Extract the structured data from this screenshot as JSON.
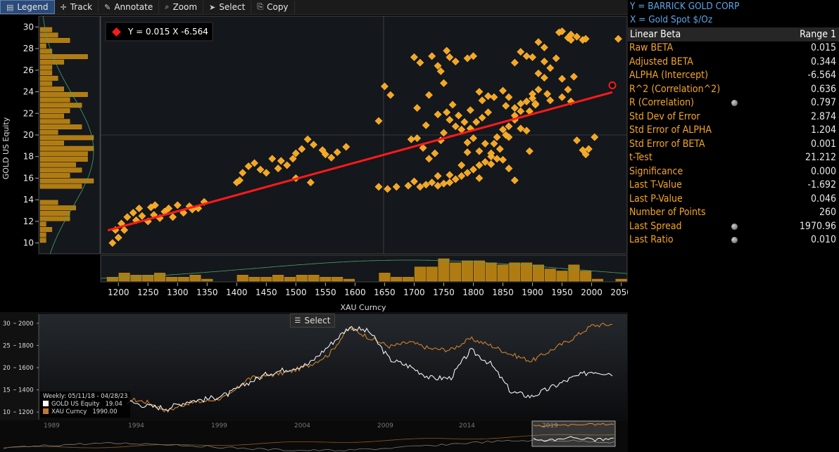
{
  "toolbar": {
    "legend": "Legend",
    "track": "Track",
    "annotate": "Annotate",
    "zoom": "Zoom",
    "select": "Select",
    "copy": "Copy"
  },
  "chart": {
    "regression_label": "Y = 0.015 X  -6.564",
    "y_axis_label": "GOLD US Equity",
    "x_axis_label": "XAU Curncy"
  },
  "colors": {
    "accent": "#f5a623",
    "regression": "#ff1a1a",
    "label_blue": "#5aa6e8"
  },
  "right_panel": {
    "y_def": "Y = BARRICK GOLD CORP",
    "x_def": "X = Gold Spot  $/Oz",
    "header_left": "Linear Beta",
    "header_right": "Range 1",
    "stats": [
      {
        "label": "Raw BETA",
        "value": "0.015"
      },
      {
        "label": "Adjusted BETA",
        "value": "0.344"
      },
      {
        "label": "ALPHA (Intercept)",
        "value": "-6.564"
      },
      {
        "label": "R^2 (Correlation^2)",
        "value": "0.636"
      },
      {
        "label": "R (Correlation)",
        "value": "0.797"
      },
      {
        "label": "Std Dev of Error",
        "value": "2.874"
      },
      {
        "label": "Std Error of ALPHA",
        "value": "1.204"
      },
      {
        "label": "Std Error of BETA",
        "value": "0.001"
      },
      {
        "label": "t-Test",
        "value": "21.212"
      },
      {
        "label": "Significance",
        "value": "0.000"
      },
      {
        "label": "Last T-Value",
        "value": "-1.692"
      },
      {
        "label": "Last P-Value",
        "value": "0.046"
      },
      {
        "label": "Number of Points",
        "value": "260"
      },
      {
        "label": "Last Spread",
        "value": "1970.96"
      },
      {
        "label": "Last Ratio",
        "value": "0.010"
      }
    ]
  },
  "lower": {
    "select_label": "Select",
    "legend_period": "Weekly: 05/11/18 - 04/28/23",
    "legend_gold_name": "GOLD US Equity",
    "legend_gold_value": "19.04",
    "legend_xau_name": "XAU Curncy",
    "legend_xau_value": "1990.00"
  },
  "chart_data": {
    "type": "scatter",
    "xlabel": "XAU Curncy",
    "ylabel": "GOLD US Equity",
    "xlim": [
      1170,
      2060
    ],
    "ylim": [
      9,
      31
    ],
    "x_ticks": [
      1200,
      1250,
      1300,
      1350,
      1400,
      1450,
      1500,
      1550,
      1600,
      1650,
      1700,
      1750,
      1800,
      1850,
      1900,
      1950,
      2000,
      2050
    ],
    "y_ticks": [
      10,
      12,
      14,
      16,
      18,
      20,
      22,
      24,
      26,
      28,
      30
    ],
    "regression": {
      "slope": 0.015,
      "intercept": -6.564
    },
    "last_point": [
      2035,
      24.6
    ],
    "points": [
      [
        1190,
        10
      ],
      [
        1200,
        10.5
      ],
      [
        1195,
        11.2
      ],
      [
        1205,
        11.8
      ],
      [
        1215,
        12.4
      ],
      [
        1210,
        11.2
      ],
      [
        1225,
        12.8
      ],
      [
        1235,
        13.2
      ],
      [
        1240,
        12.5
      ],
      [
        1250,
        12
      ],
      [
        1255,
        13.3
      ],
      [
        1262,
        13.5
      ],
      [
        1270,
        12.3
      ],
      [
        1278,
        12.9
      ],
      [
        1285,
        13.2
      ],
      [
        1292,
        12.4
      ],
      [
        1300,
        13.5
      ],
      [
        1310,
        12.8
      ],
      [
        1320,
        13.4
      ],
      [
        1335,
        13.2
      ],
      [
        1345,
        13.8
      ],
      [
        1325,
        13.1
      ],
      [
        1260,
        12.6
      ],
      [
        1230,
        12.1
      ],
      [
        1400,
        15.6
      ],
      [
        1405,
        15.8
      ],
      [
        1410,
        16.5
      ],
      [
        1420,
        17.1
      ],
      [
        1430,
        17.4
      ],
      [
        1440,
        16.8
      ],
      [
        1450,
        16.5
      ],
      [
        1460,
        17.8
      ],
      [
        1470,
        16.9
      ],
      [
        1485,
        17.2
      ],
      [
        1495,
        17.8
      ],
      [
        1500,
        18.3
      ],
      [
        1510,
        18.7
      ],
      [
        1520,
        19.6
      ],
      [
        1530,
        19.1
      ],
      [
        1550,
        18.2
      ],
      [
        1560,
        17.9
      ],
      [
        1570,
        18.4
      ],
      [
        1585,
        18.9
      ],
      [
        1500,
        16
      ],
      [
        1525,
        15.6
      ],
      [
        1545,
        18.6
      ],
      [
        1475,
        17.6
      ],
      [
        1640,
        21.3
      ],
      [
        1650,
        24.5
      ],
      [
        1660,
        23.7
      ],
      [
        1640,
        15.2
      ],
      [
        1655,
        15.0
      ],
      [
        1670,
        15.2
      ],
      [
        1690,
        15.3
      ],
      [
        1700,
        15.7
      ],
      [
        1710,
        15.2
      ],
      [
        1720,
        15.4
      ],
      [
        1730,
        15.6
      ],
      [
        1740,
        15.3
      ],
      [
        1750,
        15.5
      ],
      [
        1760,
        16.3
      ],
      [
        1770,
        15.9
      ],
      [
        1780,
        16.2
      ],
      [
        1790,
        16.5
      ],
      [
        1800,
        16.8
      ],
      [
        1810,
        17.2
      ],
      [
        1820,
        17.5
      ],
      [
        1830,
        18
      ],
      [
        1835,
        19.2
      ],
      [
        1840,
        19.8
      ],
      [
        1850,
        20.5
      ],
      [
        1860,
        20.8
      ],
      [
        1870,
        21.4
      ],
      [
        1880,
        22.2
      ],
      [
        1890,
        23.1
      ],
      [
        1900,
        23.4
      ],
      [
        1905,
        22.8
      ],
      [
        1910,
        24.2
      ],
      [
        1920,
        25.3
      ],
      [
        1930,
        26.2
      ],
      [
        1940,
        27.1
      ],
      [
        1945,
        29.5
      ],
      [
        1950,
        29.6
      ],
      [
        1960,
        29
      ],
      [
        1965,
        29.3
      ],
      [
        1975,
        29.1
      ],
      [
        1985,
        28.8
      ],
      [
        1990,
        28.9
      ],
      [
        1970,
        25.4
      ],
      [
        1960,
        24.2
      ],
      [
        1950,
        23.5
      ],
      [
        1925,
        23.8
      ],
      [
        1930,
        23.2
      ],
      [
        1950,
        25.2
      ],
      [
        1965,
        23.1
      ],
      [
        1975,
        19.5
      ],
      [
        1985,
        18.6
      ],
      [
        1990,
        18.2
      ],
      [
        1995,
        18.7
      ],
      [
        2005,
        19.8
      ],
      [
        1855,
        20
      ],
      [
        1860,
        19.8
      ],
      [
        1845,
        18.7
      ],
      [
        1840,
        17.8
      ],
      [
        1830,
        18.3
      ],
      [
        1820,
        19.2
      ],
      [
        1810,
        18.5
      ],
      [
        1800,
        19.7
      ],
      [
        1790,
        19.3
      ],
      [
        1780,
        20.5
      ],
      [
        1770,
        20.8
      ],
      [
        1760,
        21.4
      ],
      [
        1750,
        20.2
      ],
      [
        1745,
        19.5
      ],
      [
        1735,
        18.3
      ],
      [
        1725,
        17.8
      ],
      [
        1715,
        18.8
      ],
      [
        1720,
        20.9
      ],
      [
        1705,
        19.7
      ],
      [
        1695,
        19.6
      ],
      [
        1740,
        21.9
      ],
      [
        1755,
        22.1
      ],
      [
        1765,
        22.8
      ],
      [
        1775,
        21.8
      ],
      [
        1785,
        21.2
      ],
      [
        1795,
        22.3
      ],
      [
        1810,
        24
      ],
      [
        1815,
        23.2
      ],
      [
        1825,
        23.6
      ],
      [
        1850,
        24.1
      ],
      [
        1860,
        23.5
      ],
      [
        1870,
        22.5
      ],
      [
        1880,
        22.9
      ],
      [
        1895,
        22.2
      ],
      [
        1900,
        23.8
      ],
      [
        1905,
        22.9
      ],
      [
        1910,
        25.7
      ],
      [
        1920,
        26.8
      ],
      [
        1730,
        27.3
      ],
      [
        1740,
        26.4
      ],
      [
        1750,
        24.8
      ],
      [
        1760,
        27.2
      ],
      [
        1770,
        26.8
      ],
      [
        1790,
        27.1
      ],
      [
        1800,
        27.3
      ],
      [
        1710,
        26.7
      ],
      [
        1725,
        23.7
      ],
      [
        1700,
        27.2
      ],
      [
        1705,
        22.5
      ],
      [
        1755,
        27.8
      ],
      [
        1745,
        25.9
      ],
      [
        1870,
        26.7
      ],
      [
        1880,
        27.7
      ],
      [
        1890,
        27.3
      ],
      [
        1900,
        27.2
      ],
      [
        1910,
        28.6
      ],
      [
        1920,
        28.1
      ],
      [
        1965,
        28.8
      ],
      [
        2045,
        28.9
      ],
      [
        1740,
        16.2
      ],
      [
        1760,
        15.6
      ],
      [
        1780,
        17.2
      ],
      [
        1790,
        18.4
      ],
      [
        1810,
        16
      ],
      [
        1830,
        17.3
      ],
      [
        1850,
        17.7
      ],
      [
        1860,
        16.9
      ],
      [
        1870,
        15.8
      ],
      [
        1895,
        18.5
      ],
      [
        1890,
        20.4
      ],
      [
        1880,
        20.6
      ],
      [
        1870,
        21.8
      ],
      [
        1855,
        22.7
      ],
      [
        1835,
        23.5
      ],
      [
        1825,
        22.1
      ],
      [
        1815,
        21.6
      ],
      [
        1805,
        21.2
      ],
      [
        1795,
        20.6
      ]
    ]
  }
}
